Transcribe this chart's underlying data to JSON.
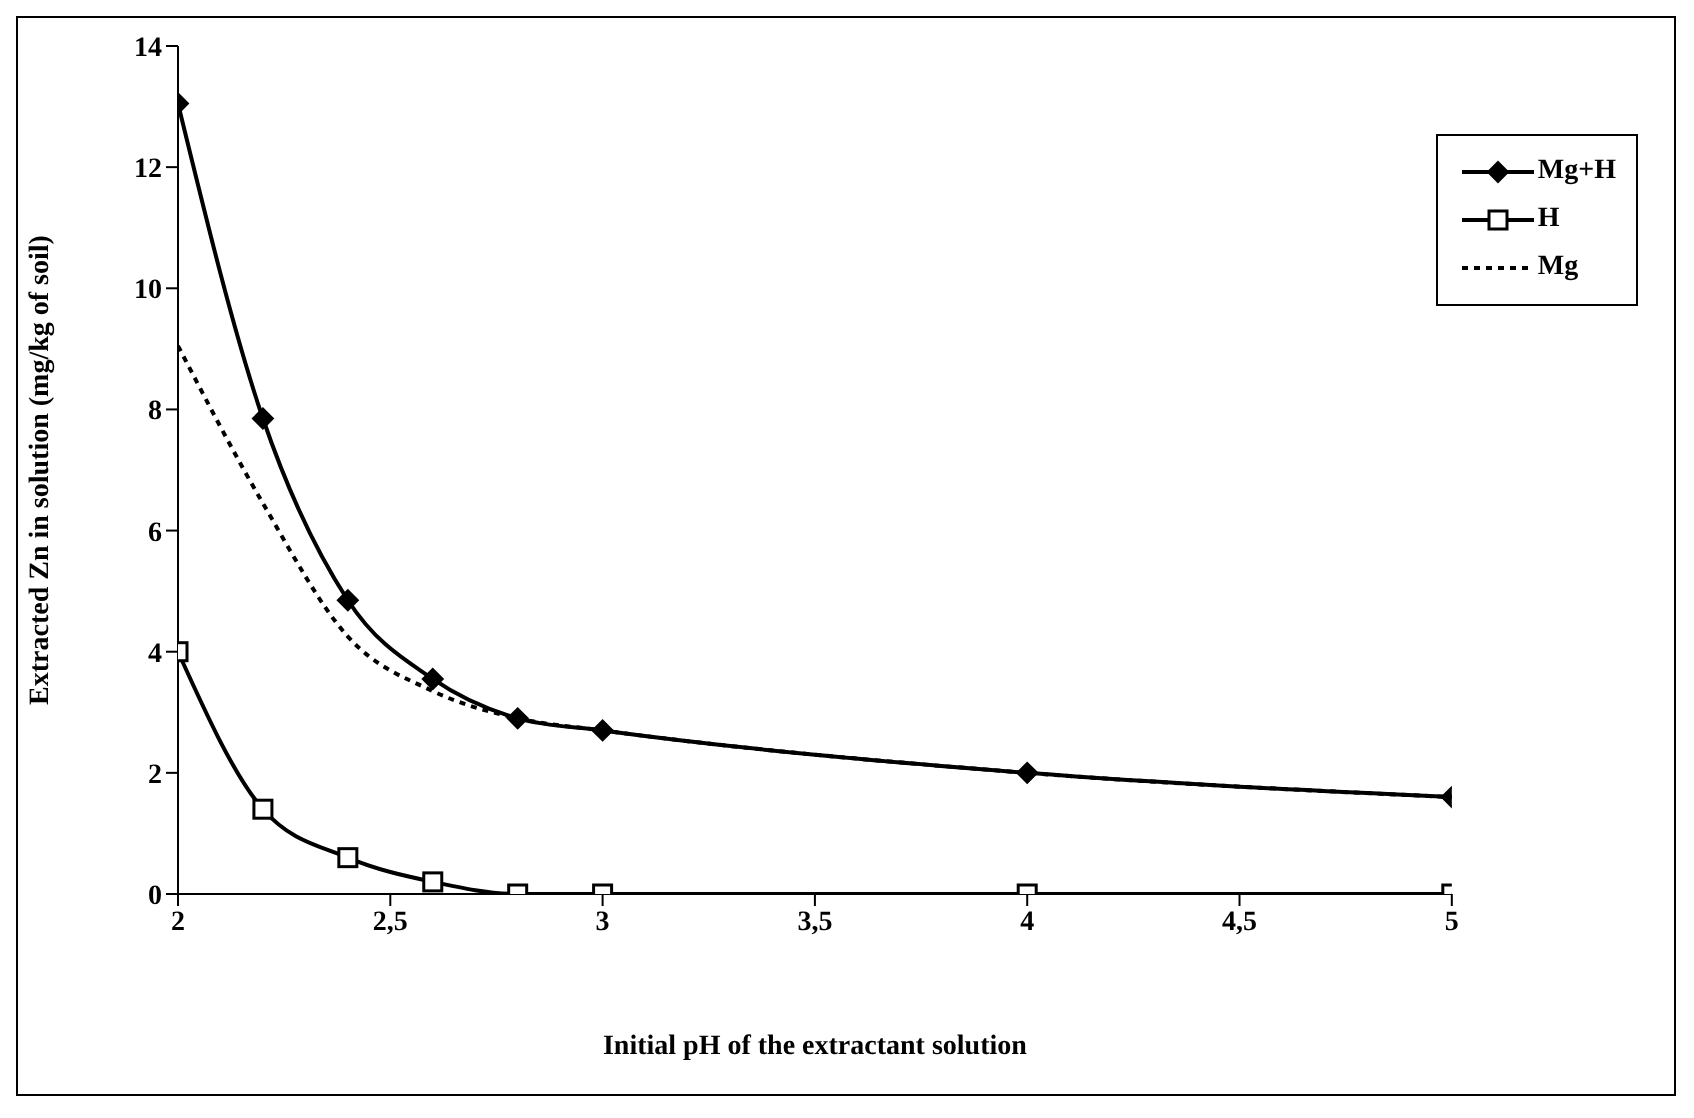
{
  "chart_data": {
    "type": "line",
    "xlabel": "Initial pH of the extractant solution",
    "ylabel": "Extracted Zn in solution (mg/kg of soil)",
    "x": [
      2,
      2.2,
      2.4,
      2.6,
      2.8,
      3,
      4,
      5
    ],
    "series": [
      {
        "name": "Mg+H",
        "color": "#000000",
        "marker": "diamond",
        "line_style": "solid",
        "values": [
          13.05,
          7.85,
          4.85,
          3.55,
          2.9,
          2.7,
          2.0,
          1.6
        ]
      },
      {
        "name": "H",
        "color": "#000000",
        "marker": "square",
        "line_style": "solid",
        "values": [
          4.0,
          1.4,
          0.6,
          0.2,
          0,
          0,
          0,
          0
        ]
      },
      {
        "name": "Mg",
        "color": "#000000",
        "marker": "none",
        "line_style": "dotted",
        "values": [
          9.05,
          6.45,
          4.25,
          3.35,
          2.9,
          2.7,
          2.0,
          1.6
        ]
      }
    ],
    "xlim": [
      2,
      5
    ],
    "xticks": [
      2,
      {
        "value": 2.5,
        "label": "2,5"
      },
      3,
      {
        "value": 3.5,
        "label": "3,5"
      },
      4,
      {
        "value": 4.5,
        "label": "4,5"
      },
      5
    ],
    "ylim": [
      0,
      14
    ],
    "yticks": [
      0,
      2,
      4,
      6,
      8,
      10,
      12,
      14
    ],
    "legend": "top right"
  }
}
